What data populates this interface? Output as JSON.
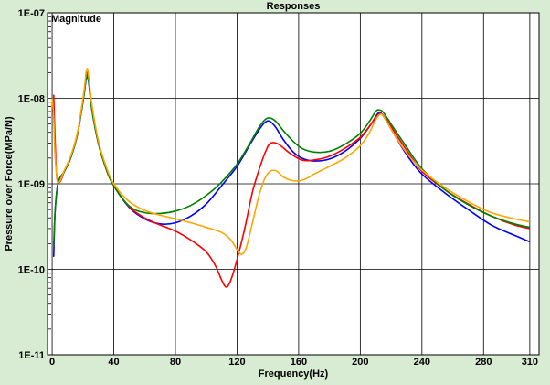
{
  "chart_data": {
    "type": "line",
    "title": "Responses",
    "annotation": "Magnitude",
    "xlabel": "Frequency(Hz)",
    "ylabel": "Pressure over Force(MPa/N)",
    "xlim": [
      -3,
      316
    ],
    "ylim": [
      1e-11,
      1e-07
    ],
    "yscale": "log",
    "grid": true,
    "xticks": [
      0,
      40,
      80,
      120,
      160,
      200,
      240,
      280,
      310
    ],
    "xtick_labels": [
      "0",
      "40",
      "80",
      "120",
      "160",
      "200",
      "240",
      "280",
      "310"
    ],
    "yticks": [
      1e-11,
      1e-10,
      1e-09,
      1e-08,
      1e-07
    ],
    "ytick_labels": [
      "1E-11",
      "1E-10",
      "1E-09",
      "1E-08",
      "1E-07"
    ],
    "colors": {
      "background": "#d8ebd3",
      "plot_area": "#ffffff",
      "grid": "#000000"
    },
    "series": [
      {
        "color": "#0000ff",
        "points": [
          [
            1,
            1.4e-10
          ],
          [
            2,
            5e-10
          ],
          [
            4,
            1.05e-09
          ],
          [
            8,
            1.4e-09
          ],
          [
            12,
            2e-09
          ],
          [
            16,
            3.5e-09
          ],
          [
            19,
            7e-09
          ],
          [
            21,
            1.2e-08
          ],
          [
            22,
            1.65e-08
          ],
          [
            23,
            1.8e-08
          ],
          [
            24,
            1.4e-08
          ],
          [
            26,
            7e-09
          ],
          [
            30,
            3e-09
          ],
          [
            35,
            1.5e-09
          ],
          [
            40,
            9.5e-10
          ],
          [
            50,
            5.3e-10
          ],
          [
            60,
            3.9e-10
          ],
          [
            70,
            3.4e-10
          ],
          [
            80,
            3.5e-10
          ],
          [
            90,
            4.2e-10
          ],
          [
            100,
            5.8e-10
          ],
          [
            110,
            9.5e-10
          ],
          [
            120,
            1.6e-09
          ],
          [
            128,
            2.8e-09
          ],
          [
            134,
            4.2e-09
          ],
          [
            138,
            5.2e-09
          ],
          [
            141,
            5.4e-09
          ],
          [
            145,
            4.6e-09
          ],
          [
            150,
            3.3e-09
          ],
          [
            156,
            2.4e-09
          ],
          [
            162,
            2e-09
          ],
          [
            170,
            1.85e-09
          ],
          [
            180,
            1.95e-09
          ],
          [
            190,
            2.4e-09
          ],
          [
            200,
            3.4e-09
          ],
          [
            207,
            5e-09
          ],
          [
            211,
            6.5e-09
          ],
          [
            213,
            6.8e-09
          ],
          [
            216,
            5.8e-09
          ],
          [
            222,
            3.8e-09
          ],
          [
            230,
            2.2e-09
          ],
          [
            240,
            1.3e-09
          ],
          [
            255,
            7.8e-10
          ],
          [
            270,
            5e-10
          ],
          [
            285,
            3.3e-10
          ],
          [
            300,
            2.5e-10
          ],
          [
            310,
            2.1e-10
          ]
        ]
      },
      {
        "color": "#ff0000",
        "points": [
          [
            1,
            1.1e-08
          ],
          [
            2,
            3e-09
          ],
          [
            3,
            1.2e-09
          ],
          [
            5,
            1.05e-09
          ],
          [
            8,
            1.4e-09
          ],
          [
            12,
            2e-09
          ],
          [
            16,
            3.5e-09
          ],
          [
            19,
            7e-09
          ],
          [
            21,
            1.25e-08
          ],
          [
            22,
            1.8e-08
          ],
          [
            23,
            2e-08
          ],
          [
            24,
            1.5e-08
          ],
          [
            26,
            7.5e-09
          ],
          [
            30,
            3e-09
          ],
          [
            35,
            1.5e-09
          ],
          [
            40,
            9.5e-10
          ],
          [
            50,
            5.4e-10
          ],
          [
            60,
            4e-10
          ],
          [
            70,
            3.3e-10
          ],
          [
            80,
            2.8e-10
          ],
          [
            90,
            2.2e-10
          ],
          [
            100,
            1.6e-10
          ],
          [
            106,
            1.1e-10
          ],
          [
            110,
            7.5e-11
          ],
          [
            113,
            6.2e-11
          ],
          [
            116,
            7.5e-11
          ],
          [
            120,
            1.3e-10
          ],
          [
            125,
            3e-10
          ],
          [
            130,
            8e-10
          ],
          [
            135,
            1.6e-09
          ],
          [
            139,
            2.5e-09
          ],
          [
            142,
            3e-09
          ],
          [
            147,
            2.9e-09
          ],
          [
            154,
            2.3e-09
          ],
          [
            162,
            1.9e-09
          ],
          [
            170,
            1.9e-09
          ],
          [
            180,
            2.1e-09
          ],
          [
            190,
            2.6e-09
          ],
          [
            200,
            3.5e-09
          ],
          [
            207,
            5e-09
          ],
          [
            211,
            6.3e-09
          ],
          [
            214,
            6.5e-09
          ],
          [
            218,
            5.3e-09
          ],
          [
            224,
            3.6e-09
          ],
          [
            232,
            2.2e-09
          ],
          [
            240,
            1.4e-09
          ],
          [
            255,
            8.5e-10
          ],
          [
            270,
            5.8e-10
          ],
          [
            285,
            4.2e-10
          ],
          [
            300,
            3.3e-10
          ],
          [
            310,
            3e-10
          ]
        ]
      },
      {
        "color": "#008000",
        "points": [
          [
            1,
            1.9e-10
          ],
          [
            2,
            5e-10
          ],
          [
            4,
            1.05e-09
          ],
          [
            8,
            1.4e-09
          ],
          [
            12,
            2e-09
          ],
          [
            16,
            3.5e-09
          ],
          [
            19,
            7e-09
          ],
          [
            21,
            1.2e-08
          ],
          [
            22,
            1.7e-08
          ],
          [
            23,
            1.9e-08
          ],
          [
            24,
            1.45e-08
          ],
          [
            26,
            7e-09
          ],
          [
            30,
            3e-09
          ],
          [
            35,
            1.5e-09
          ],
          [
            40,
            9.5e-10
          ],
          [
            50,
            5.5e-10
          ],
          [
            60,
            4.6e-10
          ],
          [
            70,
            4.5e-10
          ],
          [
            80,
            4.8e-10
          ],
          [
            90,
            5.6e-10
          ],
          [
            100,
            7.3e-10
          ],
          [
            110,
            1.05e-09
          ],
          [
            120,
            1.7e-09
          ],
          [
            128,
            2.9e-09
          ],
          [
            134,
            4.5e-09
          ],
          [
            138,
            5.6e-09
          ],
          [
            141,
            5.9e-09
          ],
          [
            145,
            5.4e-09
          ],
          [
            150,
            4.2e-09
          ],
          [
            156,
            3.2e-09
          ],
          [
            162,
            2.6e-09
          ],
          [
            170,
            2.35e-09
          ],
          [
            180,
            2.4e-09
          ],
          [
            190,
            2.9e-09
          ],
          [
            200,
            3.9e-09
          ],
          [
            206,
            5.4e-09
          ],
          [
            210,
            7e-09
          ],
          [
            212,
            7.3e-09
          ],
          [
            215,
            6.8e-09
          ],
          [
            222,
            4.4e-09
          ],
          [
            230,
            2.7e-09
          ],
          [
            240,
            1.5e-09
          ],
          [
            255,
            8.5e-10
          ],
          [
            270,
            5.7e-10
          ],
          [
            285,
            4.2e-10
          ],
          [
            300,
            3.4e-10
          ],
          [
            310,
            3.1e-10
          ]
        ]
      },
      {
        "color": "#ffa500",
        "points": [
          [
            0,
            1e-08
          ],
          [
            1,
            6e-09
          ],
          [
            2,
            2e-09
          ],
          [
            4,
            1.05e-09
          ],
          [
            8,
            1.45e-09
          ],
          [
            12,
            2.1e-09
          ],
          [
            16,
            3.7e-09
          ],
          [
            19,
            7.5e-09
          ],
          [
            21,
            1.35e-08
          ],
          [
            22,
            2e-08
          ],
          [
            23,
            2.2e-08
          ],
          [
            24,
            1.6e-08
          ],
          [
            26,
            8e-09
          ],
          [
            30,
            3.2e-09
          ],
          [
            35,
            1.6e-09
          ],
          [
            40,
            1e-09
          ],
          [
            50,
            6.2e-10
          ],
          [
            60,
            4.9e-10
          ],
          [
            70,
            4.3e-10
          ],
          [
            80,
            3.9e-10
          ],
          [
            90,
            3.5e-10
          ],
          [
            100,
            3.1e-10
          ],
          [
            110,
            2.7e-10
          ],
          [
            116,
            2.2e-10
          ],
          [
            120,
            1.7e-10
          ],
          [
            123,
            1.5e-10
          ],
          [
            126,
            1.8e-10
          ],
          [
            130,
            3.5e-10
          ],
          [
            134,
            7e-10
          ],
          [
            138,
            1.15e-09
          ],
          [
            142,
            1.42e-09
          ],
          [
            146,
            1.4e-09
          ],
          [
            150,
            1.2e-09
          ],
          [
            155,
            1.1e-09
          ],
          [
            160,
            1.08e-09
          ],
          [
            165,
            1.15e-09
          ],
          [
            170,
            1.3e-09
          ],
          [
            180,
            1.6e-09
          ],
          [
            190,
            2e-09
          ],
          [
            200,
            2.8e-09
          ],
          [
            206,
            4e-09
          ],
          [
            210,
            5.6e-09
          ],
          [
            213,
            6.5e-09
          ],
          [
            216,
            5.8e-09
          ],
          [
            222,
            3.8e-09
          ],
          [
            230,
            2.3e-09
          ],
          [
            240,
            1.45e-09
          ],
          [
            255,
            9e-10
          ],
          [
            270,
            6.2e-10
          ],
          [
            285,
            4.6e-10
          ],
          [
            300,
            3.9e-10
          ],
          [
            310,
            3.6e-10
          ]
        ]
      }
    ]
  }
}
